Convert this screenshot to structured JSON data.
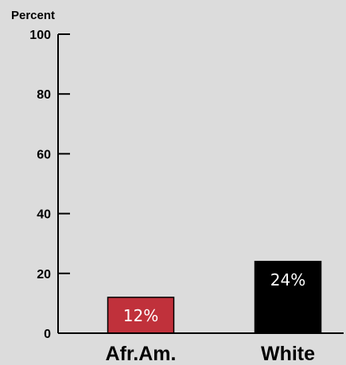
{
  "chart_data": {
    "type": "bar",
    "title": "",
    "ylabel": "Percent",
    "xlabel": "",
    "ylim": [
      0,
      100
    ],
    "yticks": [
      0,
      20,
      40,
      60,
      80,
      100
    ],
    "categories": [
      "Afr.Am.",
      "White"
    ],
    "values": [
      12,
      24
    ],
    "value_labels": [
      "12%",
      "24%"
    ],
    "colors": [
      "#c0313b",
      "#000000"
    ],
    "label_color": "#ffffff",
    "grid": false,
    "legend": "none"
  }
}
